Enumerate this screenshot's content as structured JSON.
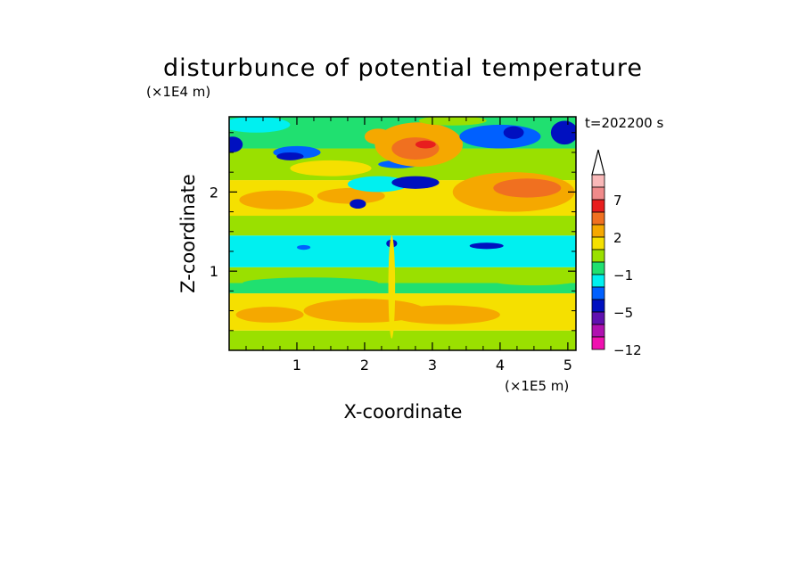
{
  "chart_data": {
    "type": "heatmap",
    "title": "disturbunce of potential temperature",
    "time_label": "t=202200 s",
    "xlabel": "X-coordinate",
    "ylabel": "Z-coordinate",
    "x_unit": "(×1E5 m)",
    "y_unit": "(×1E4 m)",
    "xlim": [
      0.0,
      5.12
    ],
    "ylim": [
      0.0,
      2.95
    ],
    "x_ticks": [
      {
        "value": 1,
        "label": "1"
      },
      {
        "value": 2,
        "label": "2"
      },
      {
        "value": 3,
        "label": "3"
      },
      {
        "value": 4,
        "label": "4"
      },
      {
        "value": 5,
        "label": "5"
      }
    ],
    "y_ticks": [
      {
        "value": 1,
        "label": "1"
      },
      {
        "value": 2,
        "label": "2"
      }
    ],
    "colorbar": {
      "levels": [
        {
          "color": "#f9b8b8",
          "from": 10,
          "to": 12
        },
        {
          "color": "#f08a8a",
          "from": 7,
          "to": 10
        },
        {
          "color": "#e81e1e",
          "from": 5,
          "to": 7
        },
        {
          "color": "#f07020",
          "from": 3,
          "to": 5
        },
        {
          "color": "#f5a800",
          "from": 2,
          "to": 3
        },
        {
          "color": "#f5e000",
          "from": 1,
          "to": 2
        },
        {
          "color": "#9ae000",
          "from": 0,
          "to": 1
        },
        {
          "color": "#20e070",
          "from": -1,
          "to": 0
        },
        {
          "color": "#00f0f0",
          "from": -2,
          "to": -1
        },
        {
          "color": "#0060ff",
          "from": -3,
          "to": -2
        },
        {
          "color": "#0010c0",
          "from": -5,
          "to": -3
        },
        {
          "color": "#6010b0",
          "from": -7,
          "to": -5
        },
        {
          "color": "#b010b0",
          "from": -10,
          "to": -7
        },
        {
          "color": "#f010b0",
          "from": -12,
          "to": -10
        }
      ],
      "tick_labels": [
        {
          "level": 7,
          "label": "7"
        },
        {
          "level": 2,
          "label": "2"
        },
        {
          "level": -1,
          "label": "−1"
        },
        {
          "level": -5,
          "label": "−5"
        },
        {
          "level": -12,
          "label": "−12"
        }
      ]
    },
    "field_bands": [
      {
        "z": [
          0.0,
          0.25
        ],
        "value": 0.5
      },
      {
        "z": [
          0.25,
          0.72
        ],
        "value": 1.5
      },
      {
        "z": [
          0.72,
          0.85
        ],
        "value": -0.5
      },
      {
        "z": [
          0.85,
          1.05
        ],
        "value": 0.5
      },
      {
        "z": [
          1.05,
          1.45
        ],
        "value": -1.5
      },
      {
        "z": [
          1.45,
          1.7
        ],
        "value": 0.5
      },
      {
        "z": [
          1.7,
          2.15
        ],
        "value": 1.5
      },
      {
        "z": [
          2.15,
          2.55
        ],
        "value": 0.5
      },
      {
        "z": [
          2.55,
          2.95
        ],
        "value": -0.5
      }
    ],
    "field_features": [
      {
        "x": 2.0,
        "z": 0.5,
        "rx": 0.9,
        "rz": 0.15,
        "value": 2.5
      },
      {
        "x": 3.2,
        "z": 0.45,
        "rx": 0.8,
        "rz": 0.12,
        "value": 2.5
      },
      {
        "x": 0.6,
        "z": 0.45,
        "rx": 0.5,
        "rz": 0.1,
        "value": 2.5
      },
      {
        "x": 1.2,
        "z": 0.85,
        "rx": 1.0,
        "rz": 0.07,
        "value": -0.5
      },
      {
        "x": 4.5,
        "z": 0.9,
        "rx": 0.7,
        "rz": 0.08,
        "value": 0.5
      },
      {
        "x": 2.4,
        "z": 1.35,
        "rx": 0.08,
        "rz": 0.05,
        "value": -4
      },
      {
        "x": 3.8,
        "z": 1.32,
        "rx": 0.25,
        "rz": 0.04,
        "value": -4
      },
      {
        "x": 1.1,
        "z": 1.3,
        "rx": 0.1,
        "rz": 0.03,
        "value": -3
      },
      {
        "x": 2.4,
        "z": 0.8,
        "rx": 0.05,
        "rz": 0.65,
        "value": 1.5
      },
      {
        "x": 0.7,
        "z": 1.9,
        "rx": 0.55,
        "rz": 0.12,
        "value": 2.5
      },
      {
        "x": 1.8,
        "z": 1.95,
        "rx": 0.5,
        "rz": 0.1,
        "value": 2.5
      },
      {
        "x": 4.2,
        "z": 2.0,
        "rx": 0.9,
        "rz": 0.25,
        "value": 2.5
      },
      {
        "x": 4.4,
        "z": 2.05,
        "rx": 0.5,
        "rz": 0.12,
        "value": 4
      },
      {
        "x": 2.2,
        "z": 2.1,
        "rx": 0.45,
        "rz": 0.1,
        "value": -1.5
      },
      {
        "x": 2.5,
        "z": 2.35,
        "rx": 0.3,
        "rz": 0.05,
        "value": -2.5
      },
      {
        "x": 2.75,
        "z": 2.12,
        "rx": 0.35,
        "rz": 0.08,
        "value": -4
      },
      {
        "x": 1.9,
        "z": 1.85,
        "rx": 0.12,
        "rz": 0.06,
        "value": -4
      },
      {
        "x": 2.8,
        "z": 2.6,
        "rx": 0.65,
        "rz": 0.28,
        "value": 2.5
      },
      {
        "x": 2.75,
        "z": 2.55,
        "rx": 0.35,
        "rz": 0.14,
        "value": 4
      },
      {
        "x": 2.9,
        "z": 2.6,
        "rx": 0.15,
        "rz": 0.05,
        "value": 6
      },
      {
        "x": 2.2,
        "z": 2.7,
        "rx": 0.2,
        "rz": 0.1,
        "value": 2.5
      },
      {
        "x": 0.05,
        "z": 2.6,
        "rx": 0.15,
        "rz": 0.1,
        "value": -4
      },
      {
        "x": 1.0,
        "z": 2.5,
        "rx": 0.35,
        "rz": 0.08,
        "value": -2.5
      },
      {
        "x": 0.9,
        "z": 2.45,
        "rx": 0.2,
        "rz": 0.05,
        "value": -4
      },
      {
        "x": 4.0,
        "z": 2.7,
        "rx": 0.6,
        "rz": 0.15,
        "value": -2.5
      },
      {
        "x": 4.2,
        "z": 2.75,
        "rx": 0.15,
        "rz": 0.08,
        "value": -4
      },
      {
        "x": 4.95,
        "z": 2.75,
        "rx": 0.2,
        "rz": 0.15,
        "value": -4
      },
      {
        "x": 0.4,
        "z": 2.85,
        "rx": 0.5,
        "rz": 0.1,
        "value": -1.5
      },
      {
        "x": 3.3,
        "z": 2.9,
        "rx": 0.5,
        "rz": 0.06,
        "value": 0.5
      },
      {
        "x": 1.5,
        "z": 2.3,
        "rx": 0.6,
        "rz": 0.1,
        "value": 1.5
      }
    ]
  }
}
